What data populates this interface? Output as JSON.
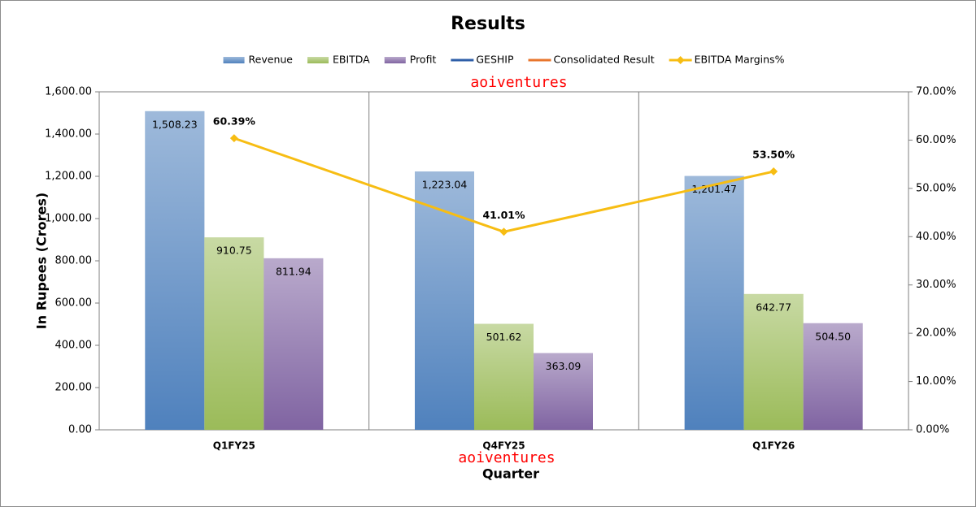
{
  "chart_data": {
    "type": "bar",
    "title": "Results",
    "y_label": "In Rupees (Crores)",
    "x_label": "Quarter",
    "categories": [
      "Q1FY25",
      "Q4FY25",
      "Q1FY26"
    ],
    "series": [
      {
        "name": "Revenue",
        "type": "bar",
        "color": "#4f81bd",
        "values": [
          1508.23,
          1223.04,
          1201.47
        ],
        "value_labels": [
          "1,508.23",
          "1,223.04",
          "1,201.47"
        ]
      },
      {
        "name": "EBITDA",
        "type": "bar",
        "color": "#9bbb59",
        "values": [
          910.75,
          501.62,
          642.77
        ],
        "value_labels": [
          "910.75",
          "501.62",
          "642.77"
        ]
      },
      {
        "name": "Profit",
        "type": "bar",
        "color": "#8064a2",
        "values": [
          811.94,
          363.09,
          504.5
        ],
        "value_labels": [
          "811.94",
          "363.09",
          "504.50"
        ]
      },
      {
        "name": "GESHIP",
        "type": "line",
        "color": "#2e5ea8",
        "values": [
          null,
          null,
          null
        ]
      },
      {
        "name": "Consolidated Result",
        "type": "line",
        "color": "#e8762d",
        "values": [
          null,
          null,
          null
        ]
      },
      {
        "name": "EBITDA Margins%",
        "type": "line",
        "marker": "diamond",
        "axis": "y2",
        "color": "#f7bd13",
        "values": [
          60.39,
          41.01,
          53.5
        ],
        "value_labels": [
          "60.39%",
          "41.01%",
          "53.50%"
        ]
      }
    ],
    "ylim": [
      0,
      1600
    ],
    "yticks": [
      {
        "value": 0,
        "label": "0.00"
      },
      {
        "value": 200,
        "label": "200.00"
      },
      {
        "value": 400,
        "label": "400.00"
      },
      {
        "value": 600,
        "label": "600.00"
      },
      {
        "value": 800,
        "label": "800.00"
      },
      {
        "value": 1000,
        "label": "1,000.00"
      },
      {
        "value": 1200,
        "label": "1,200.00"
      },
      {
        "value": 1400,
        "label": "1,400.00"
      },
      {
        "value": 1600,
        "label": "1,600.00"
      }
    ],
    "y2lim": [
      0,
      70
    ],
    "y2ticks": [
      {
        "value": 0,
        "label": "0.00%"
      },
      {
        "value": 10,
        "label": "10.00%"
      },
      {
        "value": 20,
        "label": "20.00%"
      },
      {
        "value": 30,
        "label": "30.00%"
      },
      {
        "value": 40,
        "label": "40.00%"
      },
      {
        "value": 50,
        "label": "50.00%"
      },
      {
        "value": 60,
        "label": "60.00%"
      },
      {
        "value": 70,
        "label": "70.00%"
      }
    ],
    "legend": "top",
    "annotations": [
      "aoiventures",
      "aoiventures"
    ]
  }
}
